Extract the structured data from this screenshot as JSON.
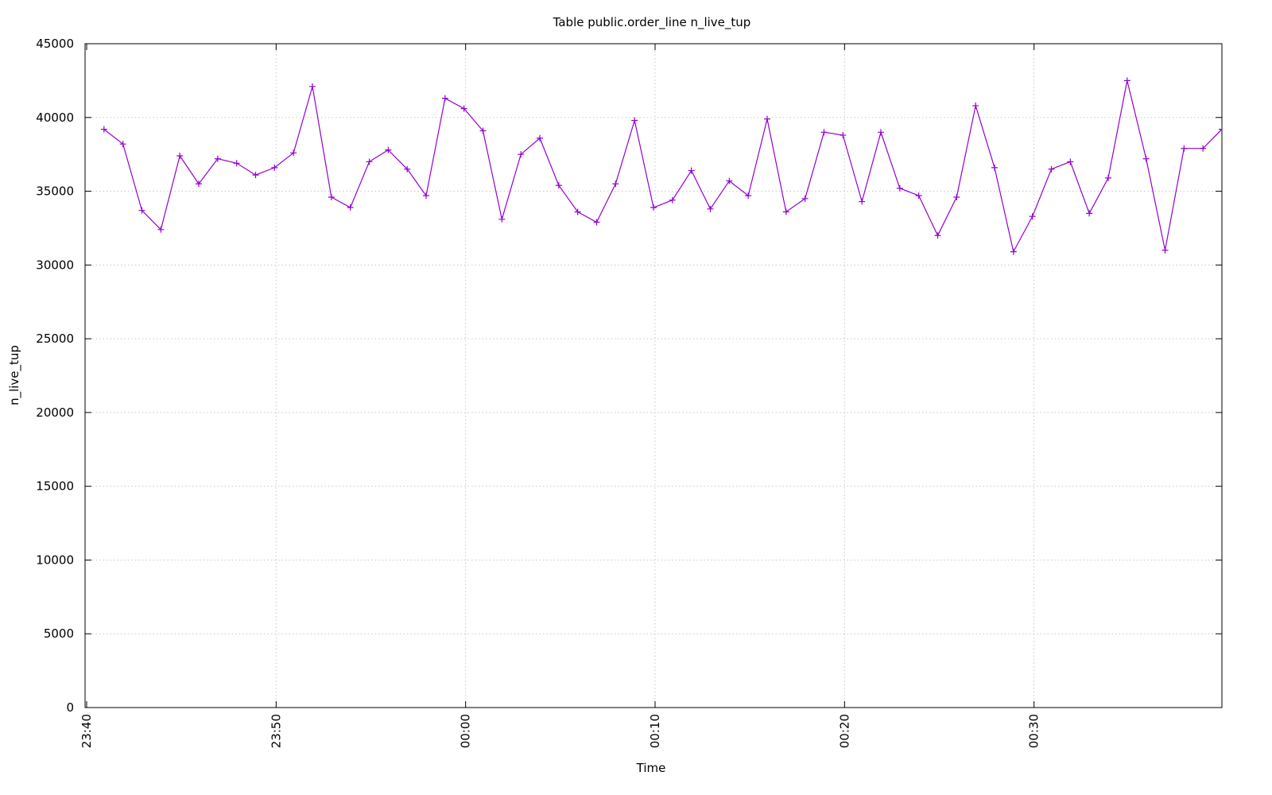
{
  "chart_data": {
    "type": "line",
    "title": "Table public.order_line n_live_tup",
    "x_label": "Time",
    "y_label": "n_live_tup",
    "color": "#9400d3",
    "marker": "+",
    "grid": true,
    "x": [
      "23:41",
      "23:42",
      "23:43",
      "23:44",
      "23:45",
      "23:46",
      "23:47",
      "23:48",
      "23:49",
      "23:50",
      "23:51",
      "23:52",
      "23:53",
      "23:54",
      "23:55",
      "23:56",
      "23:57",
      "23:58",
      "23:59",
      "00:00",
      "00:01",
      "00:02",
      "00:03",
      "00:04",
      "00:05",
      "00:06",
      "00:07",
      "00:08",
      "00:09",
      "00:10",
      "00:11",
      "00:12",
      "00:13",
      "00:14",
      "00:15",
      "00:16",
      "00:17",
      "00:18",
      "00:19",
      "00:20",
      "00:21",
      "00:22",
      "00:23",
      "00:24",
      "00:25",
      "00:26",
      "00:27",
      "00:28",
      "00:29",
      "00:30",
      "00:31",
      "00:32",
      "00:33",
      "00:34",
      "00:35",
      "00:36",
      "00:37",
      "00:38",
      "00:39",
      "00:40"
    ],
    "values": [
      39200,
      38200,
      33700,
      32400,
      37400,
      35500,
      37200,
      36900,
      36100,
      36600,
      37600,
      42100,
      34600,
      33900,
      37000,
      37800,
      36500,
      34700,
      41300,
      40600,
      39100,
      33100,
      37500,
      38600,
      35400,
      33600,
      32900,
      35500,
      39800,
      33900,
      34400,
      36400,
      33800,
      35700,
      34700,
      39900,
      33600,
      34500,
      39000,
      38800,
      34300,
      39000,
      35200,
      34700,
      32000,
      34600,
      40800,
      36600,
      30900,
      33300,
      36500,
      37000,
      33500,
      35900,
      42500,
      37200,
      31000,
      37900,
      37900,
      39200
    ],
    "xlim": [
      "23:40",
      "00:40"
    ],
    "xticks": [
      "23:40",
      "23:50",
      "00:00",
      "00:10",
      "00:20",
      "00:30"
    ],
    "ylim": [
      0,
      45000
    ],
    "yticks": [
      0,
      5000,
      10000,
      15000,
      20000,
      25000,
      30000,
      35000,
      40000,
      45000
    ]
  }
}
